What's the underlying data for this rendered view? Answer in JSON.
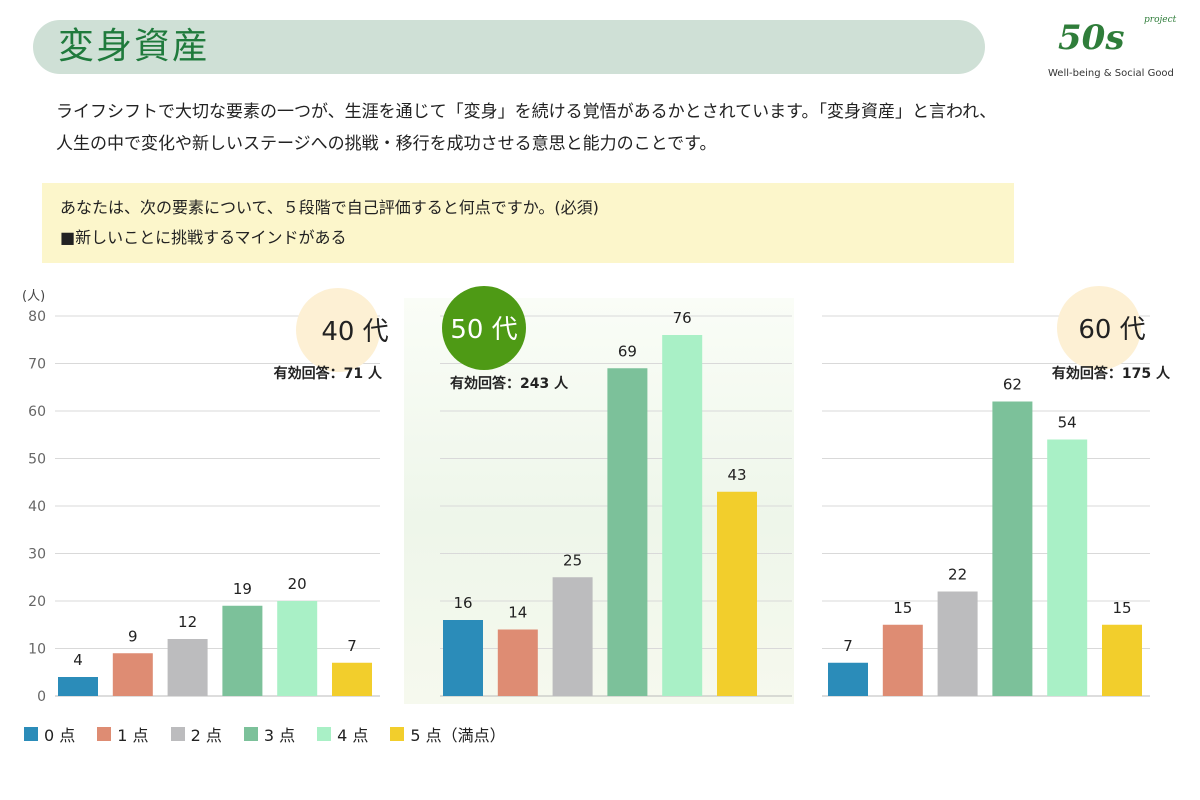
{
  "header": {
    "title": "変身資産"
  },
  "logo": {
    "project": "project",
    "main": "50s",
    "tagline": "Well-being & Social Good"
  },
  "intro": {
    "line1": "ライフシフトで大切な要素の一つが、生涯を通じて「変身」を続ける覚悟があるかとされています。「変身資産」と言われ、",
    "line2": "人生の中で変化や新しいステージへの挑戦・移行を成功させる意思と能力のことです。"
  },
  "question": {
    "line1": "あなたは、次の要素について、５段階で自己評価すると何点ですか。(必須)",
    "line2": "■新しいことに挑戦するマインドがある"
  },
  "chart_data": {
    "type": "bar",
    "title": "",
    "ylabel": "(人)",
    "ylim": [
      0,
      80
    ],
    "yticks": [
      0,
      10,
      20,
      30,
      40,
      50,
      60,
      70,
      80
    ],
    "categories": [
      "0 点",
      "1 点",
      "2 点",
      "3 点",
      "4 点",
      "5 点（満点）"
    ],
    "colors": [
      "#2b8cb9",
      "#de8c73",
      "#bcbcbe",
      "#7cc19a",
      "#a9f0c6",
      "#f2ce2c"
    ],
    "panels": [
      {
        "label": "40 代",
        "respondents": "有効回答：71 人",
        "values": [
          4,
          9,
          12,
          19,
          20,
          7
        ],
        "badge_color": "#fdf0d4",
        "badge_text_color": "#222222"
      },
      {
        "label": "50 代",
        "respondents": "有効回答：243 人",
        "values": [
          16,
          14,
          25,
          69,
          76,
          43
        ],
        "badge_color": "#4e9a15",
        "badge_text_color": "#ffffff"
      },
      {
        "label": "60 代",
        "respondents": "有効回答：175 人",
        "values": [
          7,
          15,
          22,
          62,
          54,
          15
        ],
        "badge_color": "#fdf0d4",
        "badge_text_color": "#222222"
      }
    ]
  }
}
